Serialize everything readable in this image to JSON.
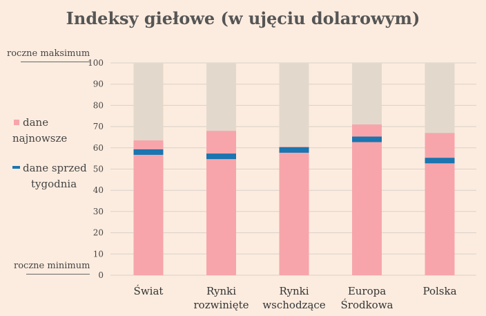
{
  "title": "Indeksy giełowe (w ujęciu dolarowym)",
  "annotations": {
    "max": "roczne maksimum",
    "min": "roczne minimum"
  },
  "legend": {
    "latest": [
      "dane",
      "najnowsze"
    ],
    "previous": [
      "dane sprzed",
      "tygodnia"
    ]
  },
  "colors": {
    "background": "#fcecdf",
    "range": "#e3d8cc",
    "latest": "#f7a5ab",
    "previous": "#1a75b0",
    "grid": "#d9d0c8"
  },
  "chart_data": {
    "type": "bar",
    "categories": [
      [
        "Świat"
      ],
      [
        "Rynki",
        "rozwinięte"
      ],
      [
        "Rynki",
        "wschodzące"
      ],
      [
        "Europa",
        "Środkowa"
      ],
      [
        "Polska"
      ]
    ],
    "ylim": [
      0,
      100
    ],
    "yticks": [
      0,
      10,
      20,
      30,
      40,
      50,
      60,
      70,
      80,
      90,
      100
    ],
    "series": [
      {
        "name": "dane najnowsze",
        "values": [
          63.5,
          68,
          60.5,
          71,
          67
        ]
      },
      {
        "name": "dane sprzed tygodnia",
        "values": [
          58,
          56,
          59,
          64,
          54
        ]
      }
    ]
  }
}
